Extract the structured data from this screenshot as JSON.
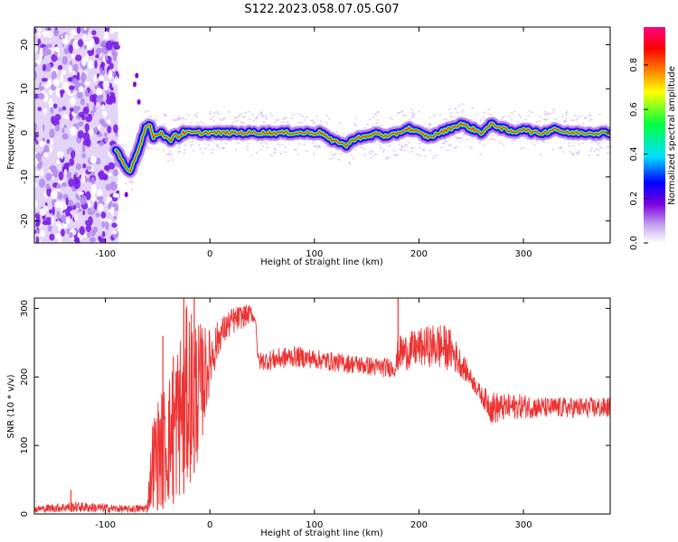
{
  "figure": {
    "title": "S122.2023.058.07.05.G07"
  },
  "chart_data": [
    {
      "type": "heatmap",
      "name": "spectrogram",
      "xlabel": "Height of straight line (km)",
      "ylabel": "Frequency (Hz)",
      "xlim": [
        -168,
        383
      ],
      "ylim": [
        -25,
        24
      ],
      "x_ticks": [
        -100,
        0,
        100,
        200,
        300
      ],
      "y_ticks": [
        -20,
        -10,
        0,
        10,
        20
      ],
      "colorbar": {
        "label": "Normalized spectral amplitude",
        "range": [
          0.0,
          0.97
        ],
        "ticks": [
          0.0,
          0.2,
          0.4,
          0.6,
          0.8
        ],
        "colormap": [
          "#ffffff",
          "#c8a8f0",
          "#7b00e0",
          "#0000ff",
          "#00e0ff",
          "#00ff40",
          "#ffff00",
          "#ff8000",
          "#ff0000",
          "#ff0080"
        ]
      },
      "noise_region_x": [
        -168,
        -88
      ],
      "ridge": {
        "x": [
          -90,
          -85,
          -80,
          -77,
          -74,
          -70,
          -66,
          -62,
          -58,
          -54,
          -50,
          -46,
          -42,
          -38,
          -34,
          -30,
          -26,
          -20,
          -10,
          0,
          20,
          40,
          60,
          80,
          100,
          108,
          112,
          118,
          124,
          130,
          140,
          150,
          160,
          170,
          180,
          190,
          200,
          210,
          220,
          230,
          240,
          250,
          260,
          270,
          280,
          290,
          300,
          310,
          320,
          330,
          340,
          350,
          360,
          370,
          383
        ],
        "y": [
          -4,
          -6,
          -8,
          -9,
          -7,
          -5,
          -2,
          1,
          2,
          -1,
          0,
          0,
          -1,
          -2,
          0,
          -1,
          0,
          0,
          0,
          0,
          0,
          0,
          0,
          0,
          0,
          0,
          -1,
          -2,
          -2,
          -3,
          -1,
          -1,
          0,
          -1,
          0,
          1,
          0,
          -1,
          0,
          1,
          2,
          1,
          0,
          2,
          1,
          0,
          1,
          0,
          0,
          1,
          0,
          0,
          0,
          0,
          0
        ]
      }
    },
    {
      "type": "line",
      "name": "snr",
      "xlabel": "Height of straight line (km)",
      "ylabel": "SNR (10 * v/v)",
      "xlim": [
        -168,
        383
      ],
      "ylim": [
        0,
        315
      ],
      "x_ticks": [
        -100,
        0,
        100,
        200,
        300
      ],
      "y_ticks": [
        0,
        100,
        200,
        300
      ],
      "color": "#ee3333",
      "envelope": {
        "x": [
          -168,
          -130,
          -100,
          -80,
          -60,
          -55,
          -50,
          -40,
          -30,
          -20,
          -10,
          0,
          10,
          20,
          30,
          40,
          44,
          46,
          60,
          80,
          100,
          120,
          140,
          160,
          178,
          180,
          190,
          200,
          210,
          220,
          230,
          240,
          250,
          260,
          270,
          280,
          300,
          320,
          340,
          360,
          383
        ],
        "low": [
          2,
          3,
          2,
          2,
          2,
          10,
          5,
          10,
          20,
          40,
          80,
          180,
          240,
          260,
          270,
          280,
          280,
          210,
          210,
          215,
          212,
          208,
          205,
          200,
          200,
          210,
          210,
          215,
          215,
          210,
          210,
          200,
          185,
          160,
          130,
          135,
          140,
          140,
          140,
          140,
          140
        ],
        "high": [
          12,
          18,
          15,
          12,
          15,
          140,
          170,
          200,
          260,
          315,
          280,
          270,
          285,
          300,
          305,
          305,
          280,
          235,
          240,
          245,
          240,
          235,
          232,
          228,
          228,
          260,
          265,
          270,
          275,
          280,
          270,
          240,
          210,
          185,
          180,
          175,
          175,
          170,
          170,
          170,
          170
        ]
      },
      "spikes": [
        {
          "x": -133,
          "y": 35
        },
        {
          "x": -45,
          "y": 260
        },
        {
          "x": -35,
          "y": 230
        },
        {
          "x": -25,
          "y": 315
        },
        {
          "x": -15,
          "y": 315
        },
        {
          "x": 180,
          "y": 315
        }
      ]
    }
  ]
}
